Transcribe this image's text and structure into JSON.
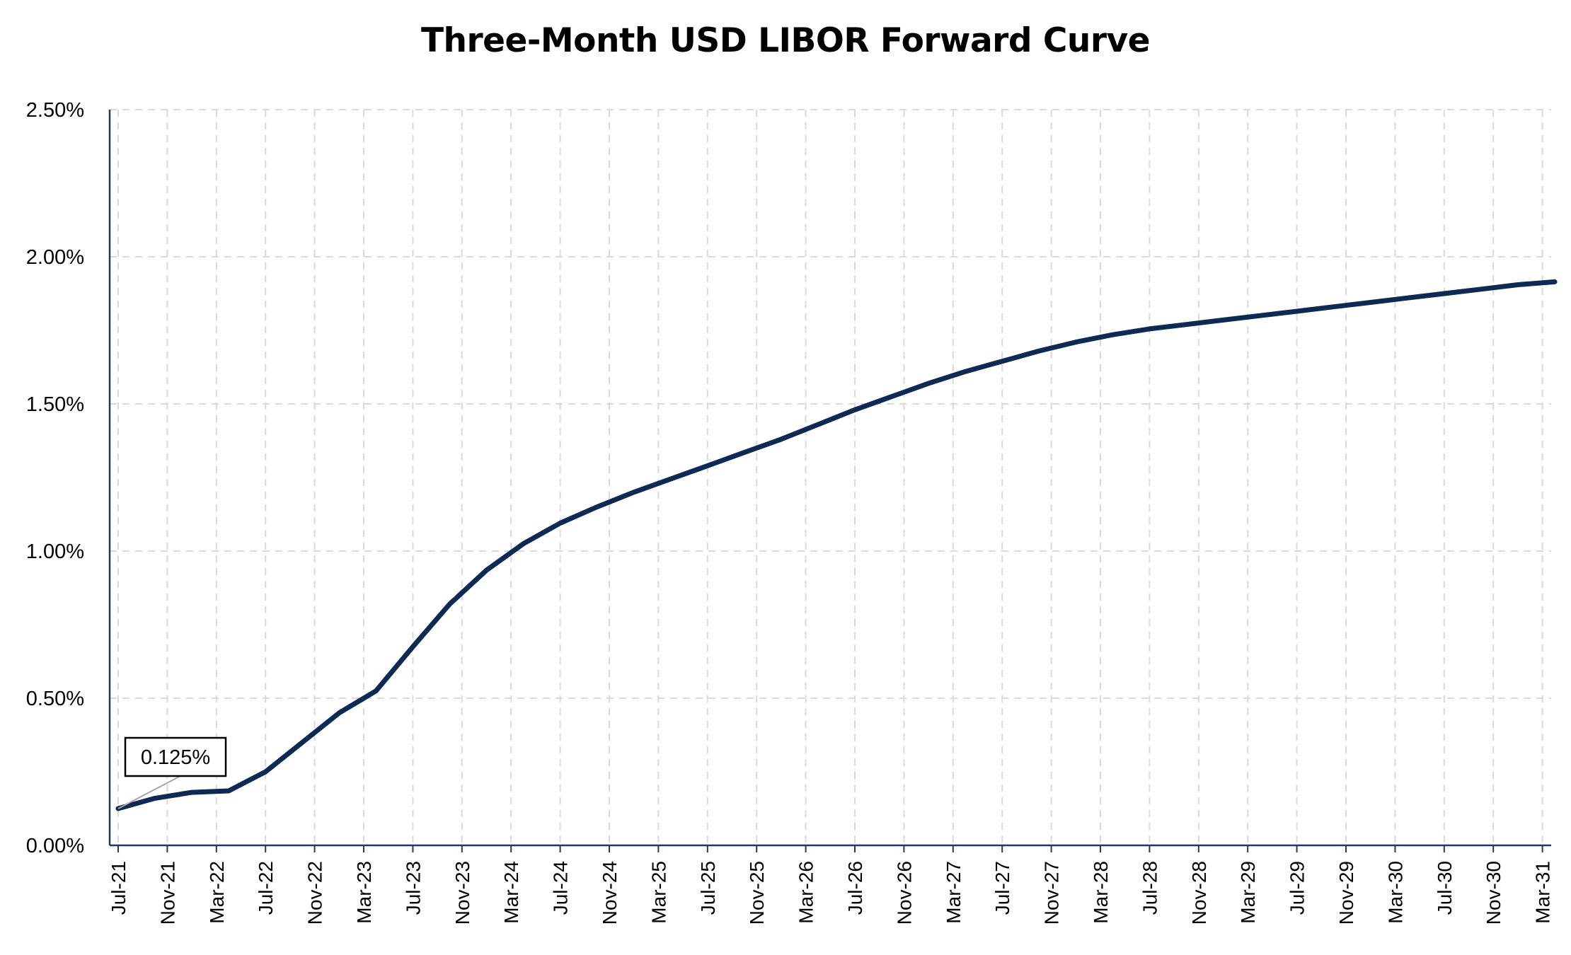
{
  "chart_data": {
    "type": "line",
    "title": "Three-Month USD LIBOR Forward Curve",
    "xlabel": "",
    "ylabel": "",
    "y_tick_labels": [
      "0.00%",
      "0.50%",
      "1.00%",
      "1.50%",
      "2.00%",
      "2.50%"
    ],
    "y_ticks": [
      0,
      0.5,
      1.0,
      1.5,
      2.0,
      2.5
    ],
    "ylim": [
      0,
      2.5
    ],
    "x_tick_labels": [
      "Jul-21",
      "Nov-21",
      "Mar-22",
      "Jul-22",
      "Nov-22",
      "Mar-23",
      "Jul-23",
      "Nov-23",
      "Mar-24",
      "Jul-24",
      "Nov-24",
      "Mar-25",
      "Jul-25",
      "Nov-25",
      "Mar-26",
      "Jul-26",
      "Nov-26",
      "Mar-27",
      "Jul-27",
      "Nov-27",
      "Mar-28",
      "Jul-28",
      "Nov-28",
      "Mar-29",
      "Jul-29",
      "Nov-29",
      "Mar-30",
      "Jul-30",
      "Nov-30",
      "Mar-31"
    ],
    "grid": true,
    "legend": "none",
    "series_color": "#0d2a54",
    "series": [
      {
        "x": [
          "Jul-21",
          "Oct-21",
          "Jan-22",
          "Apr-22",
          "Jul-22",
          "Oct-22",
          "Jan-23",
          "Apr-23",
          "Jul-23",
          "Oct-23",
          "Jan-24",
          "Apr-24",
          "Jul-24",
          "Oct-24",
          "Jan-25",
          "Apr-25",
          "Jul-25",
          "Oct-25",
          "Jan-26",
          "Apr-26",
          "Jul-26",
          "Oct-26",
          "Jan-27",
          "Apr-27",
          "Jul-27",
          "Oct-27",
          "Jan-28",
          "Apr-28",
          "Jul-28",
          "Oct-28",
          "Jan-29",
          "Apr-29",
          "Jul-29",
          "Oct-29",
          "Jan-30",
          "Apr-30",
          "Jul-30",
          "Oct-30",
          "Jan-31",
          "Apr-31"
        ],
        "values": [
          0.125,
          0.16,
          0.18,
          0.185,
          0.25,
          0.35,
          0.45,
          0.525,
          0.675,
          0.82,
          0.935,
          1.025,
          1.095,
          1.15,
          1.2,
          1.245,
          1.29,
          1.335,
          1.38,
          1.43,
          1.48,
          1.525,
          1.57,
          1.61,
          1.645,
          1.68,
          1.71,
          1.735,
          1.755,
          1.77,
          1.785,
          1.8,
          1.815,
          1.83,
          1.845,
          1.86,
          1.875,
          1.89,
          1.905,
          1.915
        ]
      }
    ],
    "annotations": [
      {
        "text": "0.125%",
        "x": "Jul-21",
        "y": 0.125
      }
    ]
  }
}
